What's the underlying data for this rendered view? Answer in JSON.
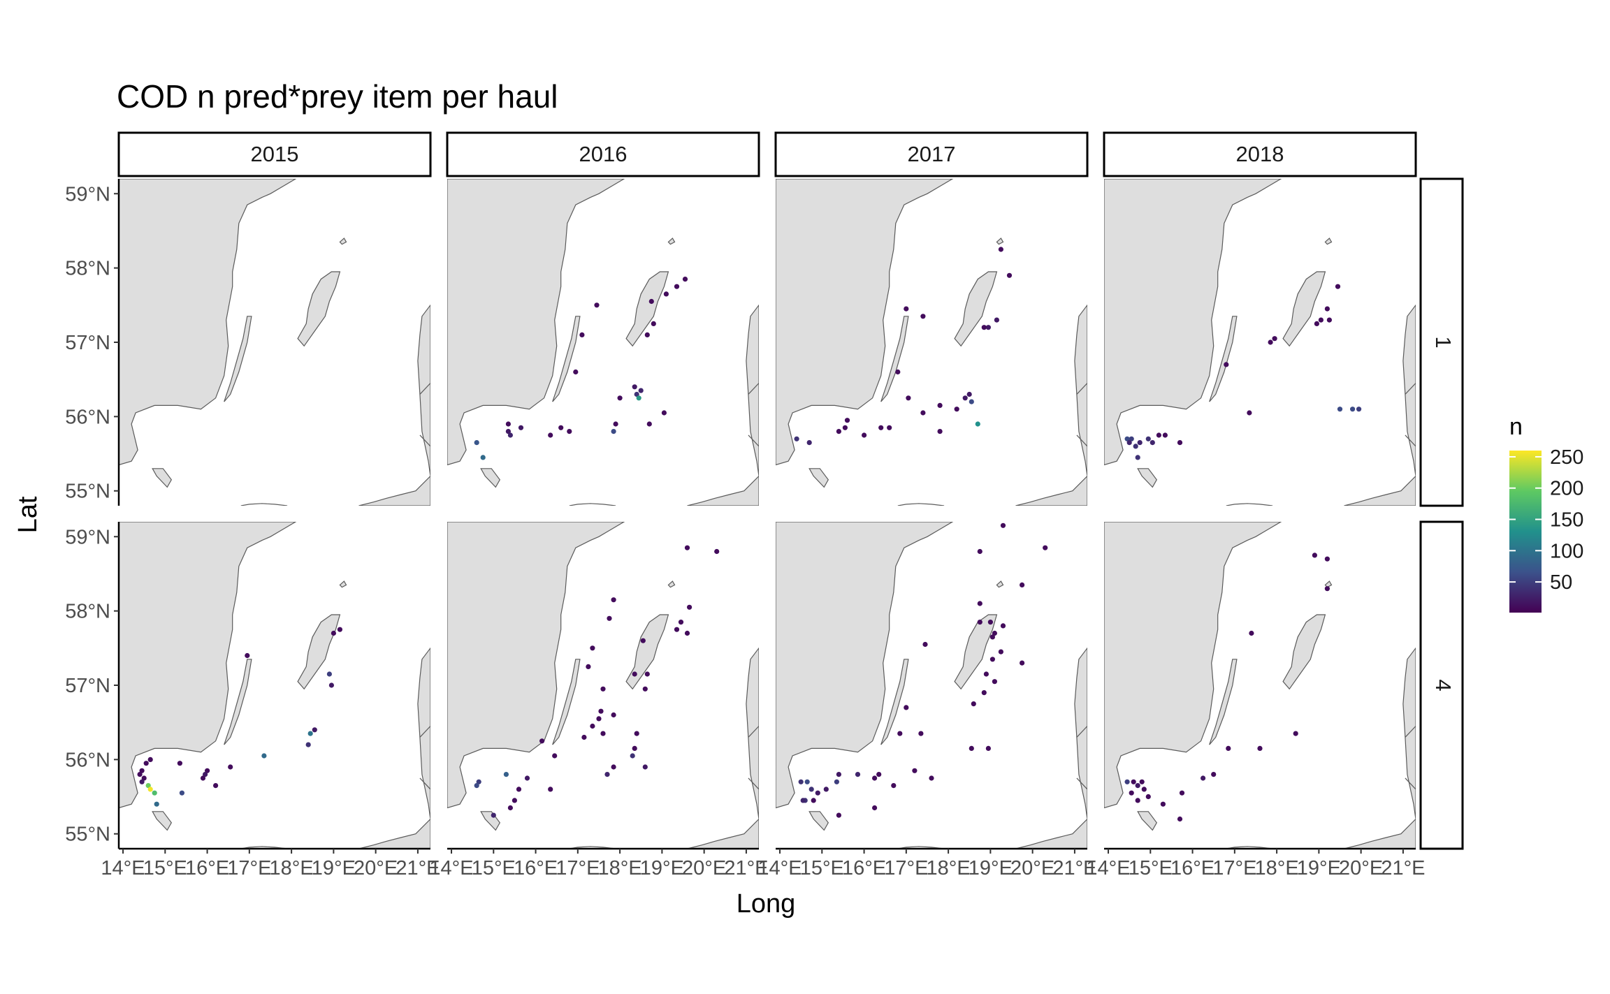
{
  "chart_data": {
    "type": "scatter",
    "title": "COD n pred*prey item per haul",
    "xlabel": "Long",
    "ylabel": "Lat",
    "xlim": [
      13.9,
      21.3
    ],
    "ylim": [
      54.8,
      59.2
    ],
    "x_ticks": [
      14,
      15,
      16,
      17,
      18,
      19,
      20,
      21
    ],
    "x_tick_labels": [
      "14°E",
      "15°E",
      "16°E",
      "17°E",
      "18°E",
      "19°E",
      "20°E",
      "21°E"
    ],
    "y_ticks": [
      55,
      56,
      57,
      58,
      59
    ],
    "y_tick_labels": [
      "55°N",
      "56°N",
      "57°N",
      "58°N",
      "59°N"
    ],
    "facet_columns": [
      "2015",
      "2016",
      "2017",
      "2018"
    ],
    "facet_rows": [
      "1",
      "4"
    ],
    "legend": {
      "title": "n",
      "position": "right",
      "range": [
        1,
        260
      ],
      "ticks": [
        50,
        100,
        150,
        200,
        250
      ],
      "tick_labels": [
        "50",
        "100",
        "150",
        "200",
        "250"
      ],
      "palette": [
        "#440154",
        "#3b528b",
        "#21918c",
        "#5ec962",
        "#fde725"
      ]
    },
    "panels": [
      {
        "year": "2015",
        "quarter": "1",
        "points": []
      },
      {
        "year": "2016",
        "quarter": "1",
        "points": [
          [
            19.55,
            57.85,
            10
          ],
          [
            19.35,
            57.75,
            10
          ],
          [
            19.1,
            57.65,
            10
          ],
          [
            18.75,
            57.55,
            10
          ],
          [
            18.8,
            57.25,
            10
          ],
          [
            18.65,
            57.1,
            10
          ],
          [
            17.45,
            57.5,
            10
          ],
          [
            17.1,
            57.1,
            10
          ],
          [
            16.95,
            56.6,
            10
          ],
          [
            18.4,
            56.3,
            40
          ],
          [
            18.5,
            56.35,
            30
          ],
          [
            18.35,
            56.4,
            20
          ],
          [
            18.45,
            56.25,
            140
          ],
          [
            18.0,
            56.25,
            10
          ],
          [
            19.05,
            56.05,
            10
          ],
          [
            18.7,
            55.9,
            10
          ],
          [
            17.9,
            55.9,
            10
          ],
          [
            17.85,
            55.8,
            60
          ],
          [
            16.6,
            55.85,
            10
          ],
          [
            16.8,
            55.8,
            10
          ],
          [
            16.35,
            55.75,
            10
          ],
          [
            15.65,
            55.85,
            20
          ],
          [
            15.35,
            55.9,
            10
          ],
          [
            15.4,
            55.75,
            30
          ],
          [
            15.35,
            55.8,
            20
          ],
          [
            14.6,
            55.65,
            70
          ],
          [
            14.75,
            55.45,
            90
          ]
        ]
      },
      {
        "year": "2017",
        "quarter": "1",
        "points": [
          [
            19.25,
            58.25,
            10
          ],
          [
            19.45,
            57.9,
            10
          ],
          [
            19.15,
            57.3,
            20
          ],
          [
            18.95,
            57.2,
            20
          ],
          [
            18.85,
            57.2,
            10
          ],
          [
            17.0,
            57.45,
            10
          ],
          [
            17.4,
            57.35,
            10
          ],
          [
            16.8,
            56.6,
            10
          ],
          [
            17.05,
            56.25,
            10
          ],
          [
            17.4,
            56.05,
            10
          ],
          [
            17.8,
            56.15,
            10
          ],
          [
            18.5,
            56.3,
            20
          ],
          [
            18.4,
            56.25,
            20
          ],
          [
            18.55,
            56.2,
            60
          ],
          [
            18.2,
            56.1,
            10
          ],
          [
            18.7,
            55.9,
            130
          ],
          [
            17.8,
            55.8,
            10
          ],
          [
            16.6,
            55.85,
            10
          ],
          [
            16.4,
            55.85,
            10
          ],
          [
            15.6,
            55.95,
            10
          ],
          [
            15.4,
            55.8,
            10
          ],
          [
            15.55,
            55.85,
            10
          ],
          [
            16.0,
            55.75,
            10
          ],
          [
            14.7,
            55.65,
            30
          ],
          [
            14.4,
            55.7,
            40
          ]
        ]
      },
      {
        "year": "2018",
        "quarter": "1",
        "points": [
          [
            19.45,
            57.75,
            10
          ],
          [
            19.2,
            57.45,
            10
          ],
          [
            19.25,
            57.3,
            10
          ],
          [
            19.05,
            57.3,
            10
          ],
          [
            18.95,
            57.25,
            10
          ],
          [
            17.95,
            57.05,
            10
          ],
          [
            17.85,
            57.0,
            10
          ],
          [
            16.8,
            56.7,
            10
          ],
          [
            17.35,
            56.05,
            10
          ],
          [
            19.5,
            56.1,
            60
          ],
          [
            19.8,
            56.1,
            60
          ],
          [
            19.95,
            56.1,
            50
          ],
          [
            15.2,
            55.75,
            10
          ],
          [
            15.35,
            55.75,
            10
          ],
          [
            14.95,
            55.7,
            40
          ],
          [
            15.05,
            55.65,
            30
          ],
          [
            14.75,
            55.65,
            30
          ],
          [
            14.55,
            55.7,
            50
          ],
          [
            14.45,
            55.7,
            60
          ],
          [
            14.65,
            55.6,
            40
          ],
          [
            14.7,
            55.45,
            40
          ],
          [
            14.5,
            55.65,
            30
          ],
          [
            15.7,
            55.65,
            10
          ]
        ]
      },
      {
        "year": "2015",
        "quarter": "4",
        "points": [
          [
            19.15,
            57.75,
            10
          ],
          [
            19.0,
            57.7,
            10
          ],
          [
            18.9,
            57.15,
            50
          ],
          [
            18.95,
            57.0,
            20
          ],
          [
            16.95,
            57.4,
            10
          ],
          [
            18.55,
            56.4,
            20
          ],
          [
            18.45,
            56.35,
            100
          ],
          [
            18.4,
            56.2,
            40
          ],
          [
            17.35,
            56.05,
            90
          ],
          [
            16.55,
            55.9,
            10
          ],
          [
            16.0,
            55.85,
            10
          ],
          [
            15.95,
            55.8,
            20
          ],
          [
            15.9,
            55.75,
            10
          ],
          [
            16.2,
            55.65,
            10
          ],
          [
            15.35,
            55.95,
            10
          ],
          [
            15.4,
            55.55,
            60
          ],
          [
            14.65,
            56.0,
            10
          ],
          [
            14.55,
            55.95,
            10
          ],
          [
            14.45,
            55.85,
            10
          ],
          [
            14.4,
            55.8,
            10
          ],
          [
            14.5,
            55.75,
            10
          ],
          [
            14.6,
            55.65,
            200
          ],
          [
            14.65,
            55.6,
            255
          ],
          [
            14.75,
            55.55,
            180
          ],
          [
            14.8,
            55.4,
            90
          ],
          [
            14.45,
            55.7,
            20
          ]
        ]
      },
      {
        "year": "2016",
        "quarter": "4",
        "points": [
          [
            19.6,
            58.85,
            10
          ],
          [
            20.3,
            58.8,
            10
          ],
          [
            19.65,
            58.05,
            10
          ],
          [
            19.45,
            57.85,
            10
          ],
          [
            19.35,
            57.75,
            10
          ],
          [
            19.6,
            57.7,
            10
          ],
          [
            18.55,
            57.6,
            10
          ],
          [
            17.85,
            58.15,
            10
          ],
          [
            17.75,
            57.9,
            10
          ],
          [
            17.35,
            57.5,
            10
          ],
          [
            17.25,
            57.25,
            10
          ],
          [
            17.6,
            56.95,
            10
          ],
          [
            18.35,
            57.15,
            10
          ],
          [
            18.65,
            57.15,
            10
          ],
          [
            18.6,
            56.95,
            10
          ],
          [
            17.55,
            56.65,
            10
          ],
          [
            17.5,
            56.55,
            10
          ],
          [
            17.35,
            56.45,
            10
          ],
          [
            17.15,
            56.3,
            10
          ],
          [
            17.6,
            56.35,
            10
          ],
          [
            18.4,
            56.35,
            10
          ],
          [
            18.35,
            56.15,
            10
          ],
          [
            18.3,
            56.05,
            40
          ],
          [
            18.6,
            55.9,
            20
          ],
          [
            17.85,
            56.6,
            10
          ],
          [
            17.85,
            55.9,
            10
          ],
          [
            17.7,
            55.8,
            30
          ],
          [
            16.45,
            56.05,
            10
          ],
          [
            16.15,
            56.25,
            10
          ],
          [
            16.35,
            55.6,
            10
          ],
          [
            15.8,
            55.75,
            20
          ],
          [
            15.6,
            55.6,
            10
          ],
          [
            15.5,
            55.45,
            10
          ],
          [
            15.4,
            55.35,
            10
          ],
          [
            15.3,
            55.8,
            80
          ],
          [
            15.0,
            55.25,
            30
          ],
          [
            14.65,
            55.7,
            50
          ],
          [
            14.6,
            55.65,
            60
          ]
        ]
      },
      {
        "year": "2017",
        "quarter": "4",
        "points": [
          [
            19.3,
            59.15,
            10
          ],
          [
            20.3,
            58.85,
            10
          ],
          [
            18.75,
            58.8,
            10
          ],
          [
            19.75,
            58.35,
            10
          ],
          [
            18.75,
            58.1,
            10
          ],
          [
            18.75,
            57.85,
            10
          ],
          [
            19.0,
            57.85,
            10
          ],
          [
            19.3,
            57.8,
            10
          ],
          [
            19.1,
            57.7,
            10
          ],
          [
            19.05,
            57.65,
            10
          ],
          [
            19.25,
            57.45,
            10
          ],
          [
            19.05,
            57.35,
            10
          ],
          [
            19.75,
            57.3,
            10
          ],
          [
            18.9,
            57.15,
            10
          ],
          [
            18.85,
            56.9,
            10
          ],
          [
            18.6,
            56.75,
            10
          ],
          [
            19.1,
            57.05,
            10
          ],
          [
            17.45,
            57.55,
            10
          ],
          [
            17.0,
            56.7,
            10
          ],
          [
            17.35,
            56.35,
            10
          ],
          [
            16.85,
            56.35,
            10
          ],
          [
            17.2,
            55.85,
            10
          ],
          [
            17.6,
            55.75,
            10
          ],
          [
            18.55,
            56.15,
            10
          ],
          [
            18.95,
            56.15,
            10
          ],
          [
            16.7,
            55.65,
            10
          ],
          [
            16.35,
            55.8,
            10
          ],
          [
            16.25,
            55.75,
            10
          ],
          [
            16.25,
            55.35,
            10
          ],
          [
            15.85,
            55.8,
            30
          ],
          [
            15.4,
            55.8,
            20
          ],
          [
            15.35,
            55.7,
            50
          ],
          [
            15.1,
            55.6,
            20
          ],
          [
            14.9,
            55.55,
            20
          ],
          [
            14.75,
            55.6,
            40
          ],
          [
            14.65,
            55.7,
            60
          ],
          [
            14.5,
            55.7,
            40
          ],
          [
            14.6,
            55.45,
            40
          ],
          [
            14.55,
            55.45,
            30
          ],
          [
            14.8,
            55.45,
            10
          ],
          [
            15.4,
            55.25,
            10
          ]
        ]
      },
      {
        "year": "2018",
        "quarter": "4",
        "points": [
          [
            18.9,
            58.75,
            10
          ],
          [
            19.2,
            58.7,
            10
          ],
          [
            19.2,
            58.3,
            10
          ],
          [
            17.4,
            57.7,
            10
          ],
          [
            18.45,
            56.35,
            10
          ],
          [
            17.6,
            56.15,
            10
          ],
          [
            16.85,
            56.15,
            10
          ],
          [
            16.5,
            55.8,
            10
          ],
          [
            16.25,
            55.75,
            20
          ],
          [
            15.75,
            55.55,
            10
          ],
          [
            15.7,
            55.2,
            10
          ],
          [
            15.3,
            55.4,
            10
          ],
          [
            14.95,
            55.5,
            10
          ],
          [
            14.8,
            55.7,
            10
          ],
          [
            14.7,
            55.65,
            20
          ],
          [
            14.6,
            55.7,
            10
          ],
          [
            14.45,
            55.7,
            50
          ],
          [
            14.7,
            55.45,
            10
          ],
          [
            14.55,
            55.55,
            10
          ],
          [
            14.85,
            55.6,
            10
          ]
        ]
      }
    ]
  }
}
